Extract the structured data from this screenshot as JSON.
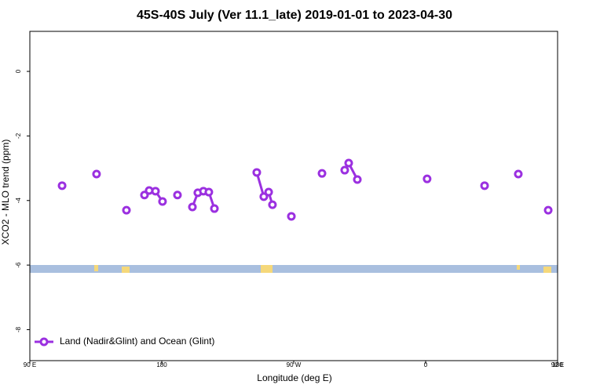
{
  "chart_data": {
    "type": "line",
    "title": "45S-40S July (Ver 11.1_late)   2019-01-01 to 2023-04-30",
    "xlabel": "Longitude (deg E)",
    "ylabel": "XCO2 - MLO trend (ppm)",
    "series": [
      {
        "name": "Land (Nadir&Glint) and Ocean (Glint)",
        "color": "#9b30e0",
        "x": [
          112,
          null,
          135.5,
          null,
          155.9,
          null,
          168.2,
          171.4,
          175.7,
          180.5,
          null,
          190.7,
          null,
          200.9,
          204.6,
          208.4,
          212.1,
          215.9,
          null,
          244.8,
          249.6,
          252.9,
          255.5,
          null,
          268.4,
          null,
          289.3,
          null,
          304.8,
          307.5,
          313.4,
          null,
          361,
          null,
          400.2,
          null,
          423.2,
          null,
          443.6
        ],
        "values": [
          -3.54,
          null,
          -3.18,
          null,
          -4.3,
          null,
          -3.83,
          -3.69,
          -3.71,
          -4.03,
          null,
          -3.83,
          null,
          -4.2,
          -3.76,
          -3.71,
          -3.74,
          -4.25,
          null,
          -3.13,
          -3.88,
          -3.74,
          -4.13,
          null,
          -4.49,
          null,
          -3.16,
          null,
          -3.06,
          -2.84,
          -3.35,
          null,
          -3.33,
          null,
          -3.54,
          null,
          -3.18,
          null,
          -4.3
        ]
      }
    ],
    "xlim": [
      90,
      450
    ],
    "xticks": [
      {
        "value": 90,
        "label": "90 E"
      },
      180,
      {
        "value": 270,
        "label": "90 W"
      },
      {
        "value": 360,
        "label": "0"
      },
      {
        "value": 450,
        "label": "90 E"
      },
      {
        "value": 540,
        "label": "180"
      }
    ],
    "ylim": [
      -8.96,
      1.24
    ],
    "yticks": [
      0,
      -2,
      -4,
      -6,
      -8
    ],
    "legend": "bottom-left"
  }
}
